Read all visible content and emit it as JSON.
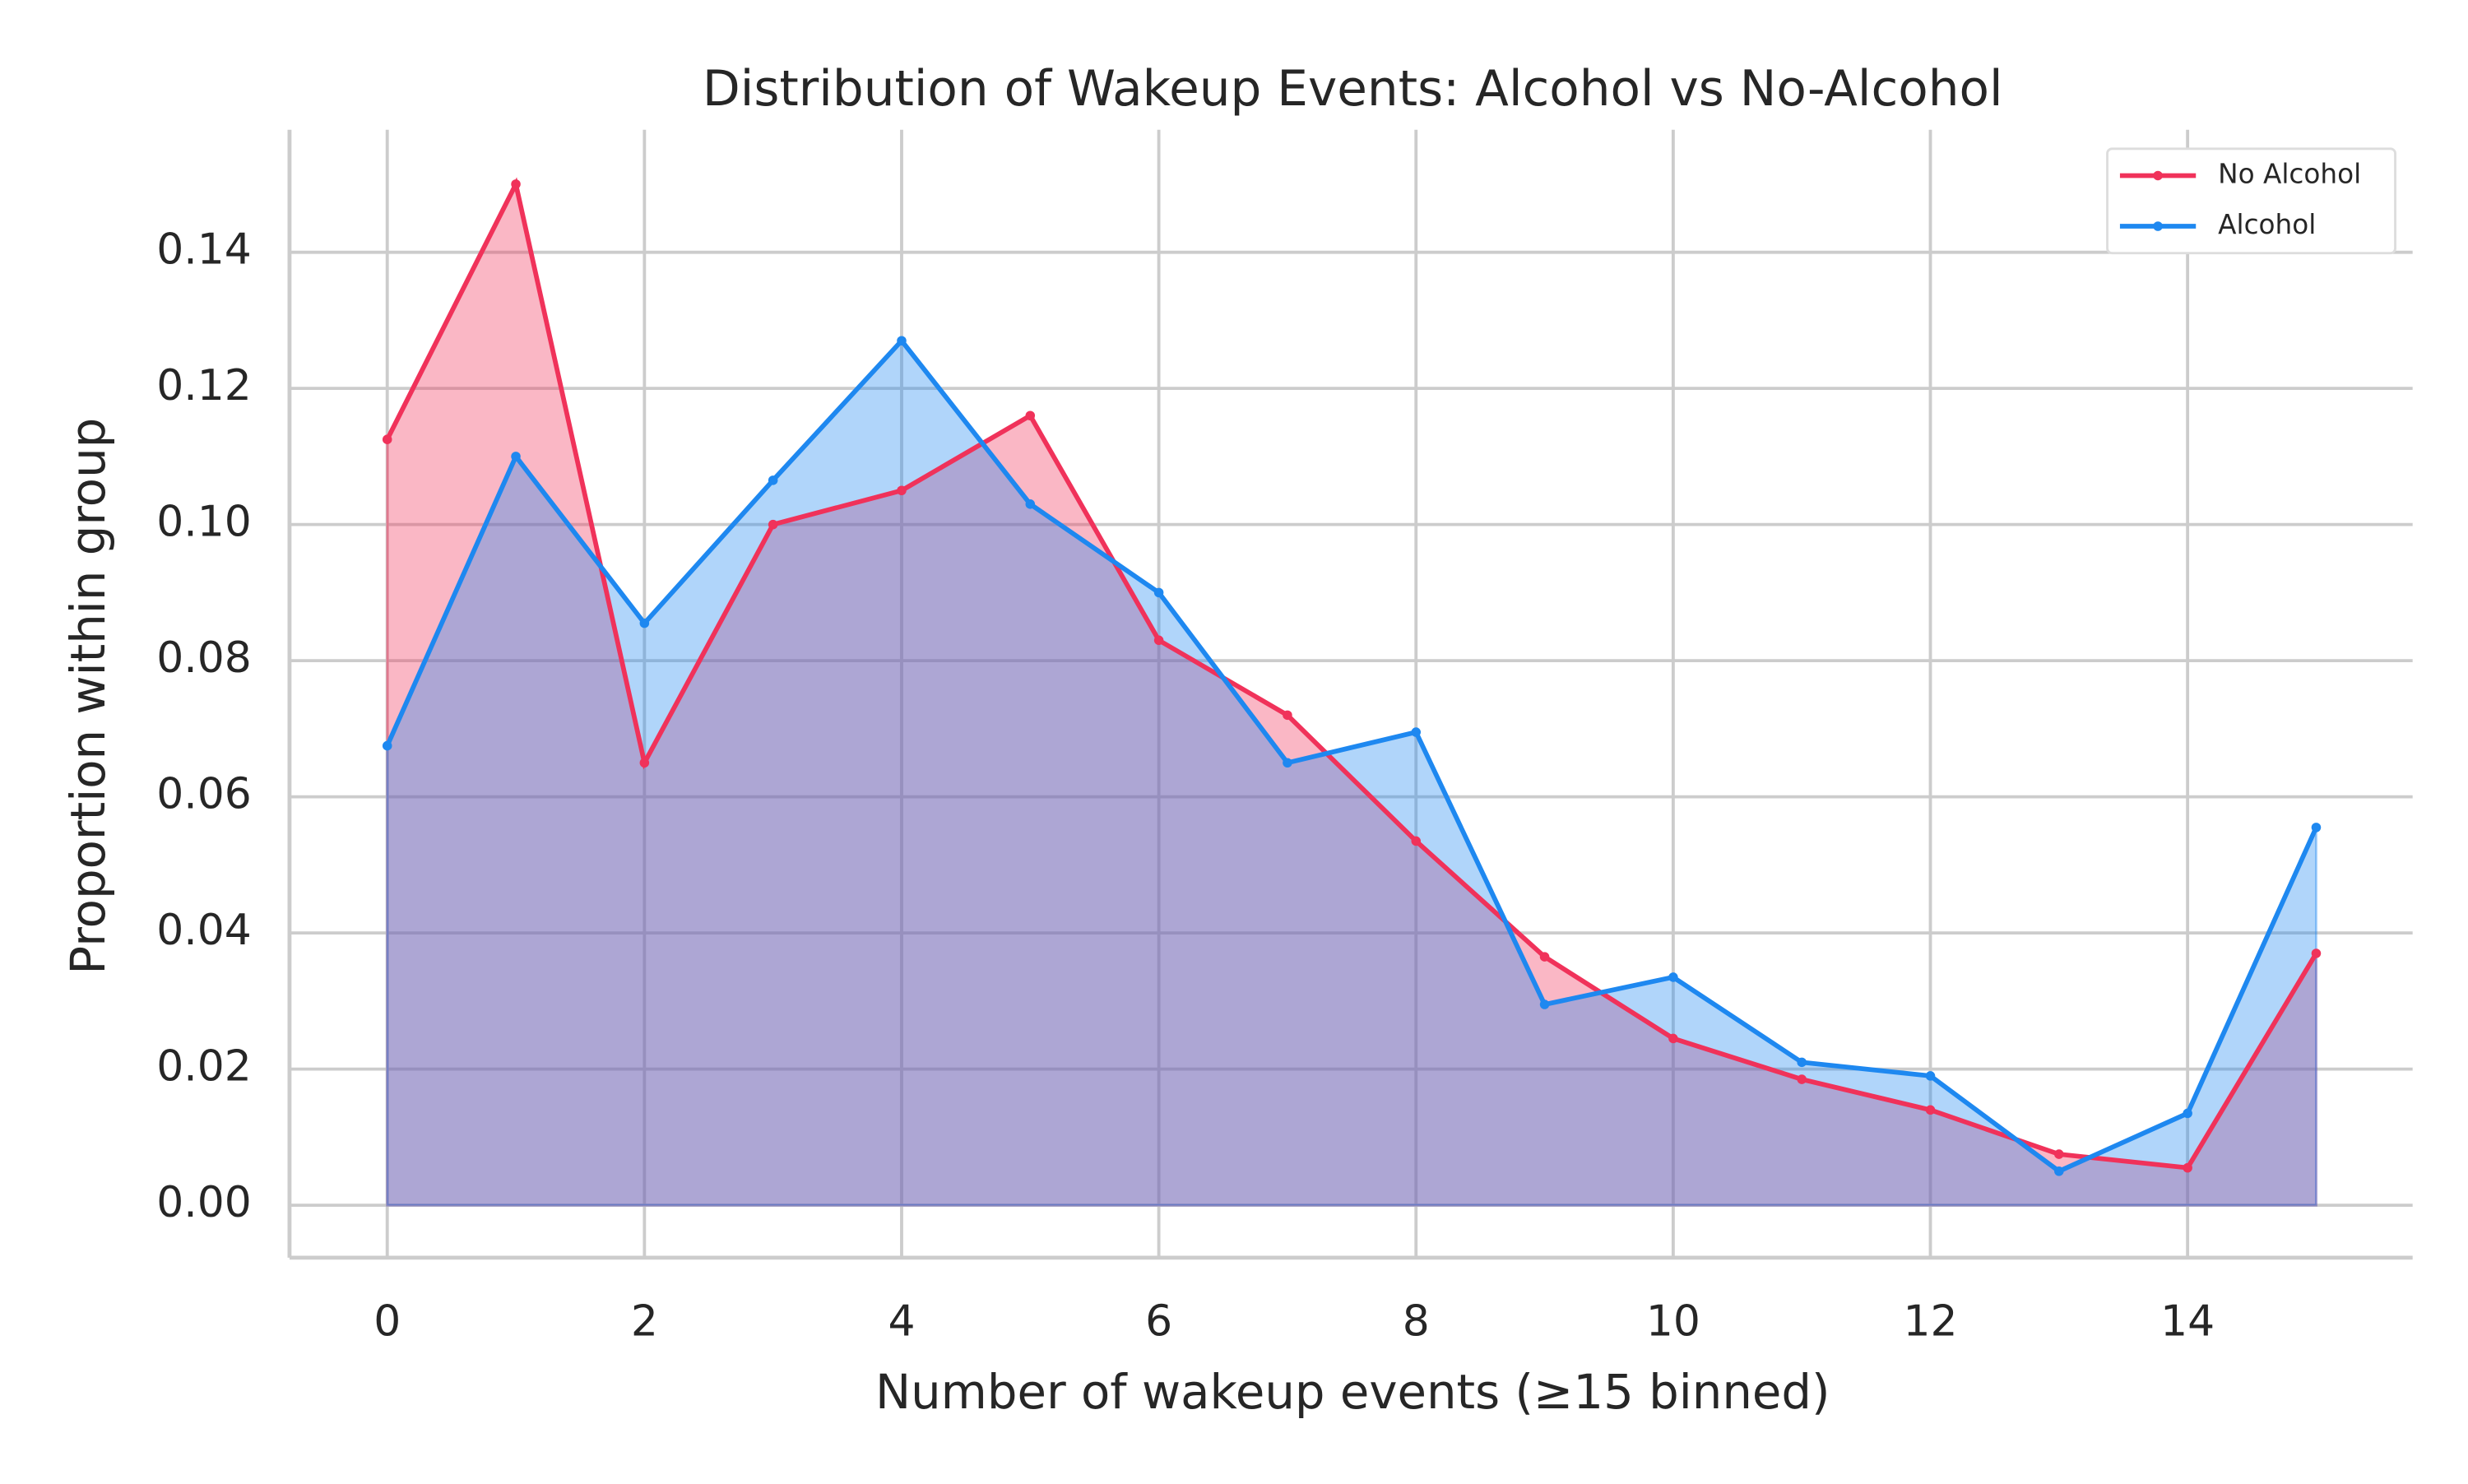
{
  "chart_data": {
    "type": "line",
    "title": "Distribution of Wakeup Events: Alcohol vs No-Alcohol",
    "xlabel": "Number of wakeup events (≥15 binned)",
    "ylabel": "Proportion within group",
    "x": [
      0,
      1,
      2,
      3,
      4,
      5,
      6,
      7,
      8,
      9,
      10,
      11,
      12,
      13,
      14,
      15
    ],
    "series": [
      {
        "name": "No Alcohol",
        "color": "#f0325a",
        "values": [
          0.1125,
          0.15,
          0.065,
          0.1,
          0.105,
          0.116,
          0.083,
          0.072,
          0.0535,
          0.0365,
          0.0245,
          0.0185,
          0.014,
          0.0075,
          0.0055,
          0.037
        ]
      },
      {
        "name": "Alcohol",
        "color": "#1e88f0",
        "values": [
          0.0675,
          0.11,
          0.0855,
          0.1065,
          0.127,
          0.103,
          0.09,
          0.065,
          0.0695,
          0.0295,
          0.0335,
          0.021,
          0.019,
          0.005,
          0.0135,
          0.0555
        ]
      }
    ],
    "fill_area": true,
    "xlim": [
      -0.76,
      15.75
    ],
    "ylim": [
      -0.0077,
      0.158
    ],
    "xticks": [
      0,
      2,
      4,
      6,
      8,
      10,
      12,
      14
    ],
    "yticks": [
      {
        "value": 0,
        "label": "0.00"
      },
      0.02,
      0.04,
      0.06,
      0.08,
      {
        "value": 0.1,
        "label": "0.10"
      },
      0.12,
      0.14
    ],
    "grid": true,
    "legend": "upper right"
  }
}
